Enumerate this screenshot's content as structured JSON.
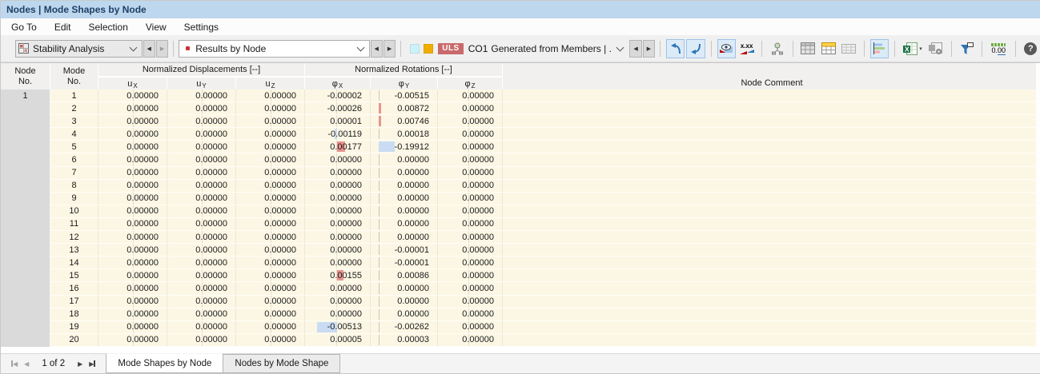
{
  "window": {
    "title": "Nodes | Mode Shapes by Node"
  },
  "menu": {
    "items": [
      "Go To",
      "Edit",
      "Selection",
      "View",
      "Settings"
    ]
  },
  "toolbar": {
    "analysis_combo": {
      "value": "Stability Analysis"
    },
    "results_combo": {
      "value": "Results by Node"
    },
    "legend": {
      "uls": "ULS",
      "combination": "CO1"
    },
    "generated_combo": {
      "value": "Generated from Members | ..."
    },
    "values_icon_label": "x.xx",
    "decimals_pre": "0.",
    "decimals_underlined": "00",
    "help_label": "?"
  },
  "table": {
    "header": {
      "node_line1": "Node",
      "node_line2": "No.",
      "mode_line1": "Mode",
      "mode_line2": "No.",
      "disp_group": "Normalized Displacements [--]",
      "rot_group": "Normalized Rotations [--]",
      "comment": "Node Comment",
      "sub_headers": [
        {
          "base": "u",
          "sub": "X"
        },
        {
          "base": "u",
          "sub": "Y"
        },
        {
          "base": "u",
          "sub": "Z"
        },
        {
          "base": "φ",
          "sub": "X"
        },
        {
          "base": "φ",
          "sub": "Y"
        },
        {
          "base": "φ",
          "sub": "Z"
        }
      ]
    },
    "node_no": "1",
    "rows": [
      {
        "mode": "1",
        "ux": "0.00000",
        "uy": "0.00000",
        "uz": "0.00000",
        "phix": "-0.00002",
        "phiy": "-0.00515",
        "phiz": "0.00000",
        "comment": ""
      },
      {
        "mode": "2",
        "ux": "0.00000",
        "uy": "0.00000",
        "uz": "0.00000",
        "phix": "-0.00026",
        "phiy": "0.00872",
        "phiz": "0.00000",
        "comment": "",
        "bars": [
          {
            "col": "phiy",
            "w": 3,
            "color": "red"
          }
        ]
      },
      {
        "mode": "3",
        "ux": "0.00000",
        "uy": "0.00000",
        "uz": "0.00000",
        "phix": "0.00001",
        "phiy": "0.00746",
        "phiz": "0.00000",
        "comment": "",
        "bars": [
          {
            "col": "phiy",
            "w": 3,
            "color": "red"
          }
        ]
      },
      {
        "mode": "4",
        "ux": "0.00000",
        "uy": "0.00000",
        "uz": "0.00000",
        "phix": "-0.00119",
        "phiy": "0.00018",
        "phiz": "0.00000",
        "comment": "",
        "bars": [
          {
            "col": "phix",
            "side": "left",
            "w": 3,
            "color": "blue"
          }
        ]
      },
      {
        "mode": "5",
        "ux": "0.00000",
        "uy": "0.00000",
        "uz": "0.00000",
        "phix": "0.00177",
        "phiy": "-0.19912",
        "phiz": "0.00000",
        "comment": "",
        "bars": [
          {
            "col": "phix",
            "side": "right",
            "w": 10,
            "color": "red"
          },
          {
            "col": "phiy",
            "w": 20,
            "color": "blue"
          }
        ]
      },
      {
        "mode": "6",
        "ux": "0.00000",
        "uy": "0.00000",
        "uz": "0.00000",
        "phix": "0.00000",
        "phiy": "0.00000",
        "phiz": "0.00000",
        "comment": ""
      },
      {
        "mode": "7",
        "ux": "0.00000",
        "uy": "0.00000",
        "uz": "0.00000",
        "phix": "0.00000",
        "phiy": "0.00000",
        "phiz": "0.00000",
        "comment": ""
      },
      {
        "mode": "8",
        "ux": "0.00000",
        "uy": "0.00000",
        "uz": "0.00000",
        "phix": "0.00000",
        "phiy": "0.00000",
        "phiz": "0.00000",
        "comment": ""
      },
      {
        "mode": "9",
        "ux": "0.00000",
        "uy": "0.00000",
        "uz": "0.00000",
        "phix": "0.00000",
        "phiy": "0.00000",
        "phiz": "0.00000",
        "comment": ""
      },
      {
        "mode": "10",
        "ux": "0.00000",
        "uy": "0.00000",
        "uz": "0.00000",
        "phix": "0.00000",
        "phiy": "0.00000",
        "phiz": "0.00000",
        "comment": ""
      },
      {
        "mode": "11",
        "ux": "0.00000",
        "uy": "0.00000",
        "uz": "0.00000",
        "phix": "0.00000",
        "phiy": "0.00000",
        "phiz": "0.00000",
        "comment": ""
      },
      {
        "mode": "12",
        "ux": "0.00000",
        "uy": "0.00000",
        "uz": "0.00000",
        "phix": "0.00000",
        "phiy": "0.00000",
        "phiz": "0.00000",
        "comment": ""
      },
      {
        "mode": "13",
        "ux": "0.00000",
        "uy": "0.00000",
        "uz": "0.00000",
        "phix": "0.00000",
        "phiy": "-0.00001",
        "phiz": "0.00000",
        "comment": ""
      },
      {
        "mode": "14",
        "ux": "0.00000",
        "uy": "0.00000",
        "uz": "0.00000",
        "phix": "0.00000",
        "phiy": "-0.00001",
        "phiz": "0.00000",
        "comment": ""
      },
      {
        "mode": "15",
        "ux": "0.00000",
        "uy": "0.00000",
        "uz": "0.00000",
        "phix": "0.00155",
        "phiy": "0.00086",
        "phiz": "0.00000",
        "comment": "",
        "bars": [
          {
            "col": "phix",
            "side": "right",
            "w": 8,
            "color": "red"
          }
        ]
      },
      {
        "mode": "16",
        "ux": "0.00000",
        "uy": "0.00000",
        "uz": "0.00000",
        "phix": "0.00000",
        "phiy": "0.00000",
        "phiz": "0.00000",
        "comment": ""
      },
      {
        "mode": "17",
        "ux": "0.00000",
        "uy": "0.00000",
        "uz": "0.00000",
        "phix": "0.00000",
        "phiy": "0.00000",
        "phiz": "0.00000",
        "comment": ""
      },
      {
        "mode": "18",
        "ux": "0.00000",
        "uy": "0.00000",
        "uz": "0.00000",
        "phix": "0.00000",
        "phiy": "0.00000",
        "phiz": "0.00000",
        "comment": ""
      },
      {
        "mode": "19",
        "ux": "0.00000",
        "uy": "0.00000",
        "uz": "0.00000",
        "phix": "-0.00513",
        "phiy": "-0.00262",
        "phiz": "0.00000",
        "comment": "",
        "bars": [
          {
            "col": "phix",
            "side": "left",
            "w": 25,
            "color": "blue"
          }
        ]
      },
      {
        "mode": "20",
        "ux": "0.00000",
        "uy": "0.00000",
        "uz": "0.00000",
        "phix": "0.00005",
        "phiy": "0.00003",
        "phiz": "0.00000",
        "comment": ""
      }
    ]
  },
  "statusbar": {
    "pager": "1 of 2",
    "tabs": [
      {
        "label": "Mode Shapes by Node",
        "active": true
      },
      {
        "label": "Nodes by Mode Shape",
        "active": false
      }
    ]
  },
  "colors": {
    "title_bar": "#BDD7EE",
    "uls_badge": "#C96A6A",
    "swatch_cyan": "#CBF2F6",
    "swatch_amber": "#F0AD00",
    "bar_red": "#E9948E",
    "bar_blue": "#C9DCF4",
    "toolbar_highlight": "#DCEBF8"
  }
}
